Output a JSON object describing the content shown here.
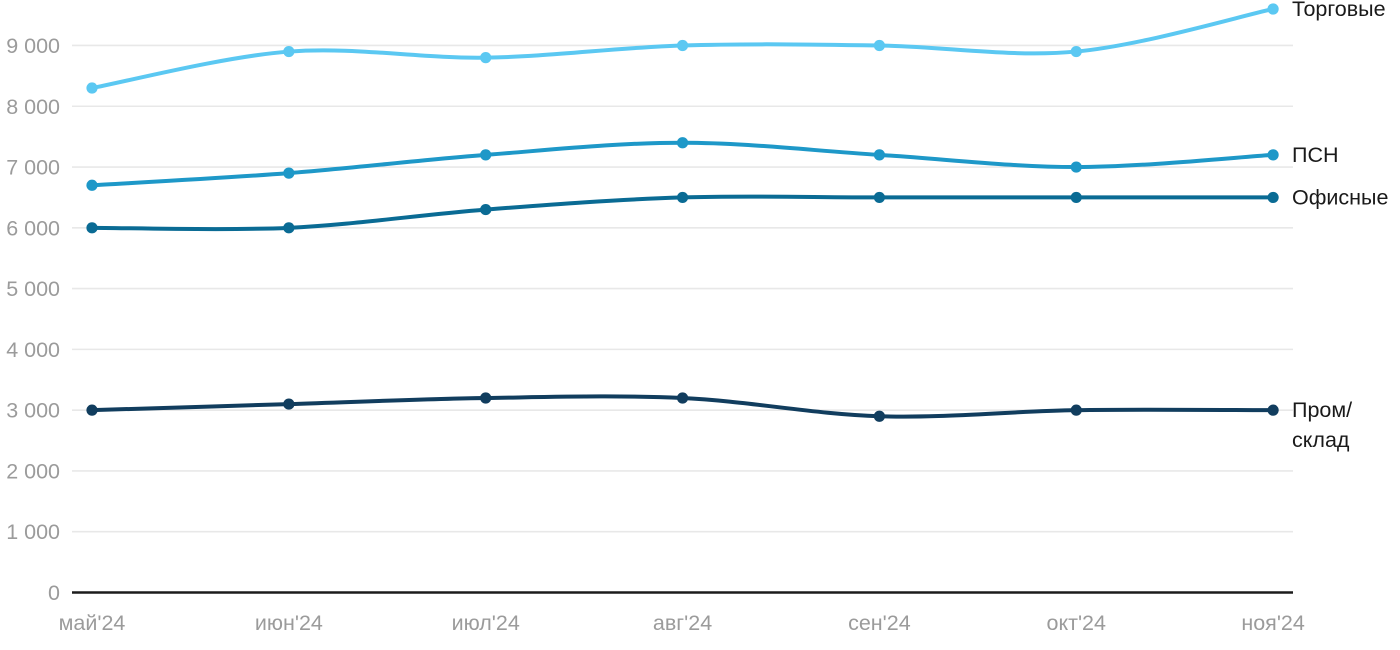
{
  "chart_data": {
    "type": "line",
    "title": "",
    "xlabel": "",
    "ylabel": "",
    "x_categories": [
      "май'24",
      "июн'24",
      "июл'24",
      "авг'24",
      "сен'24",
      "окт'24",
      "ноя'24"
    ],
    "series": [
      {
        "name": "Торговые",
        "slug": "torgovye",
        "label_lines": [
          "Торговые"
        ],
        "color": "#5bc8f2",
        "values": [
          8300,
          8900,
          8800,
          9000,
          9000,
          8900,
          9600
        ]
      },
      {
        "name": "ПСН",
        "slug": "psn",
        "label_lines": [
          "ПСН"
        ],
        "color": "#1e98c8",
        "values": [
          6700,
          6900,
          7200,
          7400,
          7200,
          7000,
          7200
        ]
      },
      {
        "name": "Офисные",
        "slug": "ofisnye",
        "label_lines": [
          "Офисные"
        ],
        "color": "#0a6b94",
        "values": [
          6000,
          6000,
          6300,
          6500,
          6500,
          6500,
          6500
        ]
      },
      {
        "name": "Пром/склад",
        "slug": "prom-sklad",
        "label_lines": [
          "Пром/",
          "склад"
        ],
        "color": "#113d5e",
        "values": [
          3000,
          3100,
          3200,
          3200,
          2900,
          3000,
          3000
        ]
      }
    ],
    "ylim": [
      0,
      9600
    ],
    "ytick_step": 1000,
    "yticks": [
      {
        "value": 0,
        "label": "0"
      },
      {
        "value": 1000,
        "label": "1 000"
      },
      {
        "value": 2000,
        "label": "2 000"
      },
      {
        "value": 3000,
        "label": "3 000"
      },
      {
        "value": 4000,
        "label": "4 000"
      },
      {
        "value": 5000,
        "label": "5 000"
      },
      {
        "value": 6000,
        "label": "6 000"
      },
      {
        "value": 7000,
        "label": "7 000"
      },
      {
        "value": 8000,
        "label": "8 000"
      },
      {
        "value": 9000,
        "label": "9 000"
      }
    ],
    "grid": "horizontal",
    "legend_position": "right-of-line-end",
    "colors": {
      "tick_label": "#9b9b9b",
      "grid_line": "#e8e8e8",
      "axis_line": "#1c1c1c",
      "legend_text": "#1a1a1a",
      "background": "#ffffff"
    }
  }
}
